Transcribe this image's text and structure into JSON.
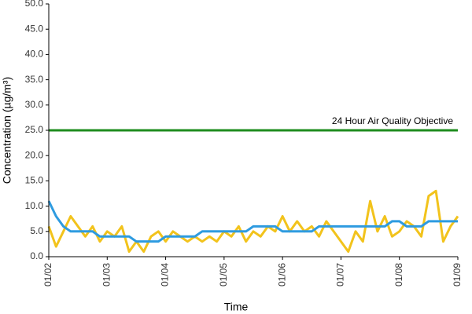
{
  "chart_data": {
    "type": "line",
    "x_label": "Time",
    "y_label": "Concentration (µg/m³)",
    "x": [
      0,
      3,
      6,
      9,
      12,
      15,
      18,
      21,
      24,
      27,
      30,
      33,
      36,
      39,
      42,
      45,
      48,
      51,
      54,
      57,
      60,
      63,
      66,
      69,
      72,
      75,
      78,
      81,
      84,
      87,
      90,
      93,
      96,
      99,
      102,
      105,
      108,
      111,
      114,
      117,
      120,
      123,
      126,
      129,
      132,
      135,
      138,
      141,
      144,
      147,
      150,
      153,
      156,
      159,
      162,
      165,
      168
    ],
    "series": [
      {
        "color": "#f2c31c",
        "values": [
          6,
          2,
          5,
          8,
          6,
          4,
          6,
          3,
          5,
          4,
          6,
          1,
          3,
          1,
          4,
          5,
          3,
          5,
          4,
          3,
          4,
          3,
          4,
          3,
          5,
          4,
          6,
          3,
          5,
          4,
          6,
          5,
          8,
          5,
          7,
          5,
          6,
          4,
          7,
          5,
          3,
          1,
          5,
          3,
          11,
          5,
          8,
          4,
          5,
          7,
          6,
          4,
          12,
          13,
          3,
          6,
          8
        ]
      },
      {
        "color": "#2e9be0",
        "values": [
          11,
          8,
          6,
          5,
          5,
          5,
          5,
          4,
          4,
          4,
          4,
          4,
          3,
          3,
          3,
          3,
          4,
          4,
          4,
          4,
          4,
          5,
          5,
          5,
          5,
          5,
          5,
          5,
          6,
          6,
          6,
          6,
          5,
          5,
          5,
          5,
          5,
          6,
          6,
          6,
          6,
          6,
          6,
          6,
          6,
          6,
          6,
          7,
          7,
          6,
          6,
          6,
          7,
          7,
          7,
          7,
          7
        ]
      }
    ],
    "objective": {
      "value": 25,
      "label": "24 Hour Air Quality Objective",
      "color": "#1e8c1e"
    },
    "xlim": [
      0,
      168
    ],
    "xticks": [
      {
        "value": 0,
        "label": "01/02"
      },
      {
        "value": 24,
        "label": "01/03"
      },
      {
        "value": 48,
        "label": "01/04"
      },
      {
        "value": 72,
        "label": "01/05"
      },
      {
        "value": 96,
        "label": "01/06"
      },
      {
        "value": 120,
        "label": "01/07"
      },
      {
        "value": 144,
        "label": "01/08"
      },
      {
        "value": 168,
        "label": "01/09"
      }
    ],
    "ylim": [
      0,
      50
    ],
    "yticks": [
      {
        "value": 0,
        "label": "0.0"
      },
      {
        "value": 5,
        "label": "5.0"
      },
      {
        "value": 10,
        "label": "10.0"
      },
      {
        "value": 15,
        "label": "15.0"
      },
      {
        "value": 20,
        "label": "20.0"
      },
      {
        "value": 25,
        "label": "25.0"
      },
      {
        "value": 30,
        "label": "30.0"
      },
      {
        "value": 35,
        "label": "35.0"
      },
      {
        "value": 40,
        "label": "40.0"
      },
      {
        "value": 45,
        "label": "45.0"
      },
      {
        "value": 50,
        "label": "50.0"
      }
    ]
  }
}
